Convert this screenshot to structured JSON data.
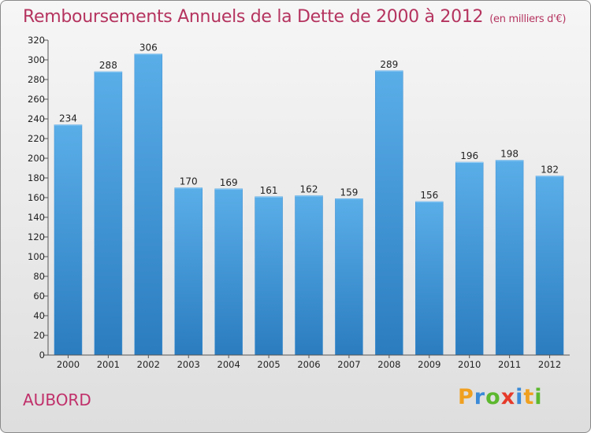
{
  "header": {
    "title": "Remboursements Annuels de la Dette de 2000 à 2012",
    "unit": "(en milliers d'€)"
  },
  "location": "AUBORD",
  "logo": {
    "letters": [
      "P",
      "r",
      "o",
      "x",
      "i",
      "t",
      "i"
    ],
    "colors": [
      "#f0a020",
      "#3a8ad8",
      "#5cb82e",
      "#e63a2a",
      "#3a8ad8",
      "#f0a020",
      "#5cb82e"
    ]
  },
  "chart_data": {
    "type": "bar",
    "title": "Remboursements Annuels de la Dette de 2000 à 2012",
    "ylabel": "en milliers d'€",
    "xlabel": "",
    "categories": [
      "2000",
      "2001",
      "2002",
      "2003",
      "2004",
      "2005",
      "2006",
      "2007",
      "2008",
      "2009",
      "2010",
      "2011",
      "2012"
    ],
    "values": [
      234,
      288,
      306,
      170,
      169,
      161,
      162,
      159,
      289,
      156,
      196,
      198,
      182
    ],
    "ylim": [
      0,
      320
    ],
    "yticks": [
      0,
      20,
      40,
      60,
      80,
      100,
      120,
      140,
      160,
      180,
      200,
      220,
      240,
      260,
      280,
      300,
      320
    ],
    "grid": false,
    "bar_color_top": "#5aaee8",
    "bar_color_bottom": "#2a7cbf"
  }
}
